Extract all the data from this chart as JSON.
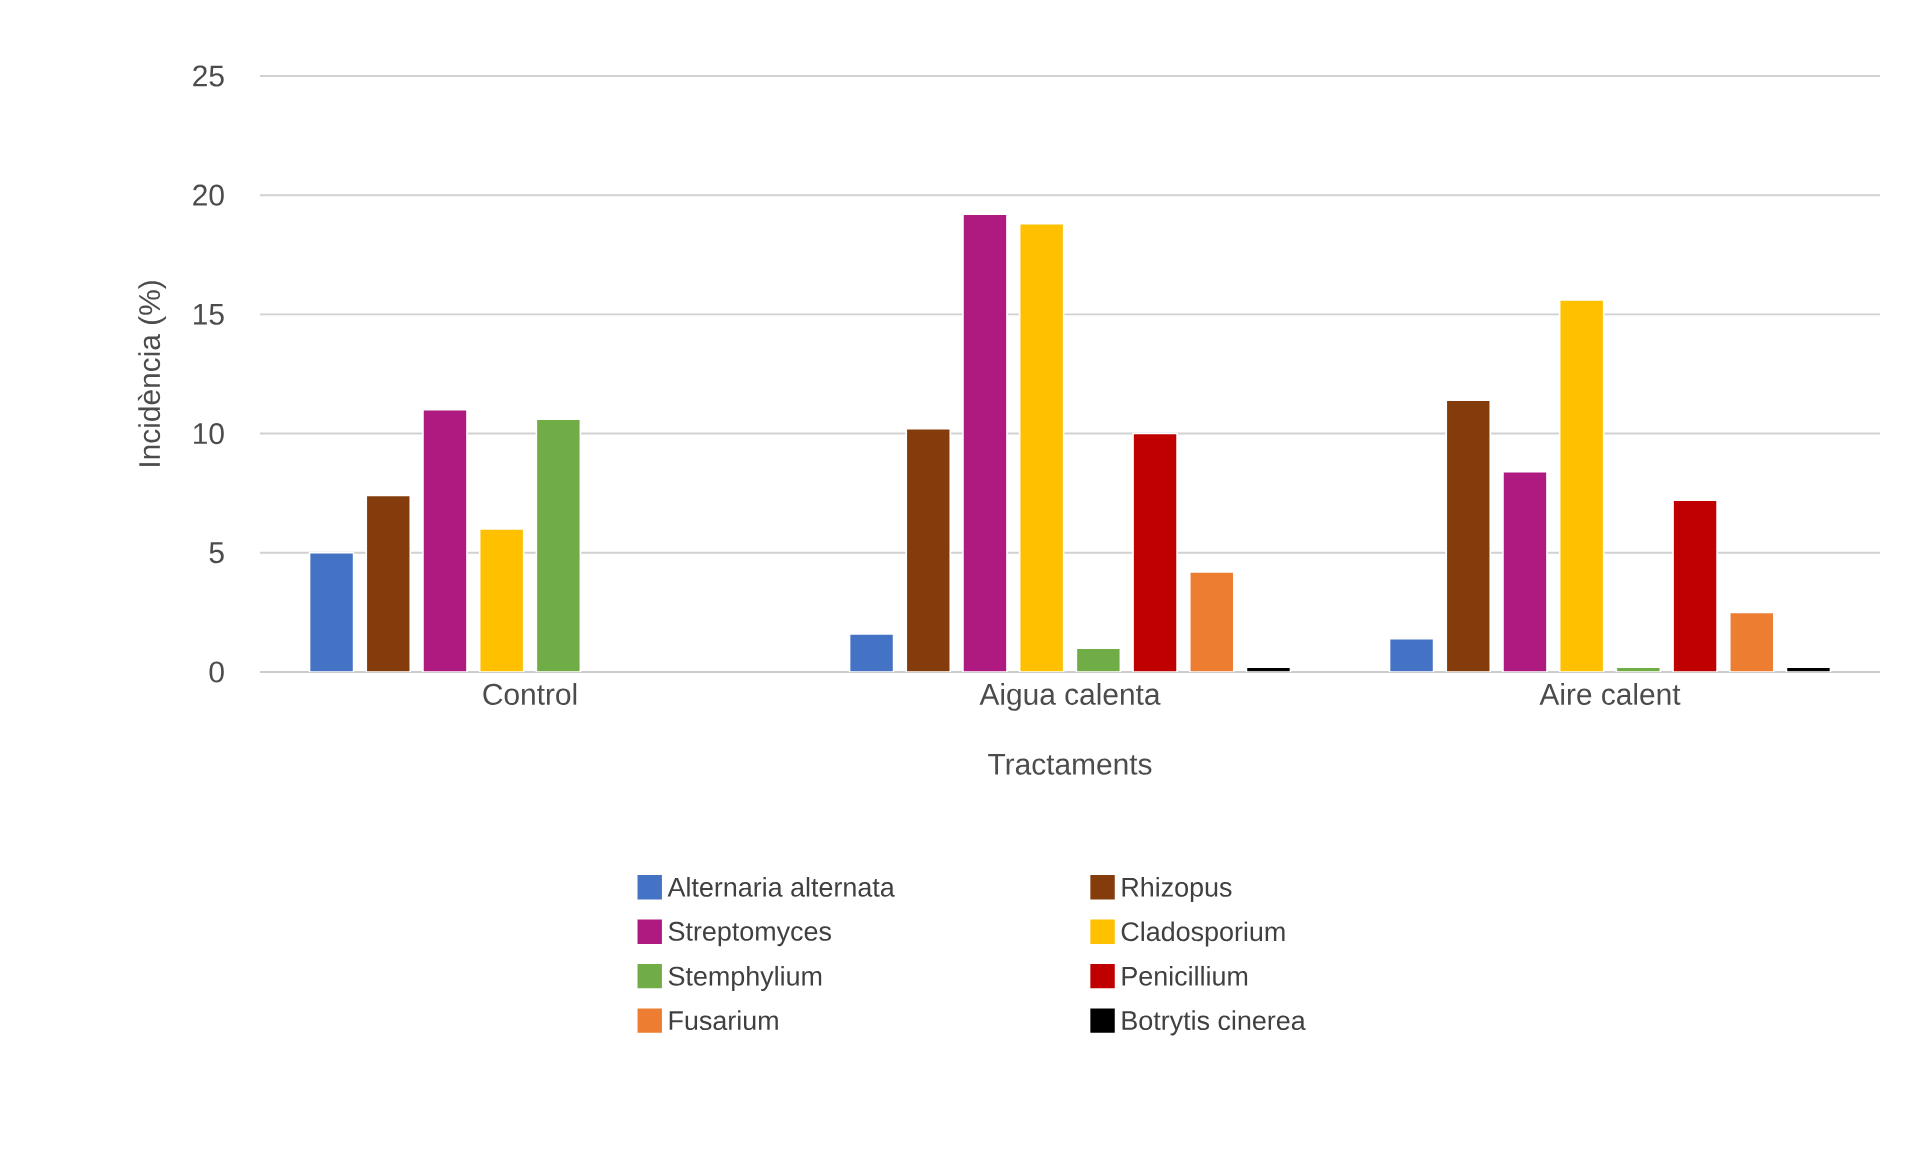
{
  "chart_data": {
    "type": "bar",
    "xlabel": "Tractaments",
    "ylabel": "Incidència (%)",
    "categories": [
      "Control",
      "Aigua calenta",
      "Aire calent"
    ],
    "series": [
      {
        "name": "Alternaria alternata",
        "color": "#4472c4",
        "values": [
          5.0,
          1.6,
          1.4
        ]
      },
      {
        "name": "Rhizopus",
        "color": "#843c0c",
        "values": [
          7.4,
          10.2,
          11.4
        ]
      },
      {
        "name": "Streptomyces",
        "color": "#ae1a7f",
        "values": [
          11.0,
          19.2,
          8.4
        ]
      },
      {
        "name": "Cladosporium",
        "color": "#ffc000",
        "values": [
          6.0,
          18.8,
          15.6
        ]
      },
      {
        "name": "Stemphylium",
        "color": "#70ad47",
        "values": [
          10.6,
          1.0,
          0.2
        ]
      },
      {
        "name": "Penicillium",
        "color": "#c00000",
        "values": [
          null,
          10.0,
          7.2
        ]
      },
      {
        "name": "Fusarium",
        "color": "#ed7d31",
        "values": [
          null,
          4.2,
          2.5
        ]
      },
      {
        "name": "Botrytis cinerea",
        "color": "#000000",
        "values": [
          null,
          0.2,
          0.2
        ]
      }
    ],
    "ylim": [
      0,
      25
    ],
    "yticks": [
      0,
      5,
      10,
      15,
      20,
      25
    ],
    "grid": "y",
    "legend": "bottom"
  }
}
